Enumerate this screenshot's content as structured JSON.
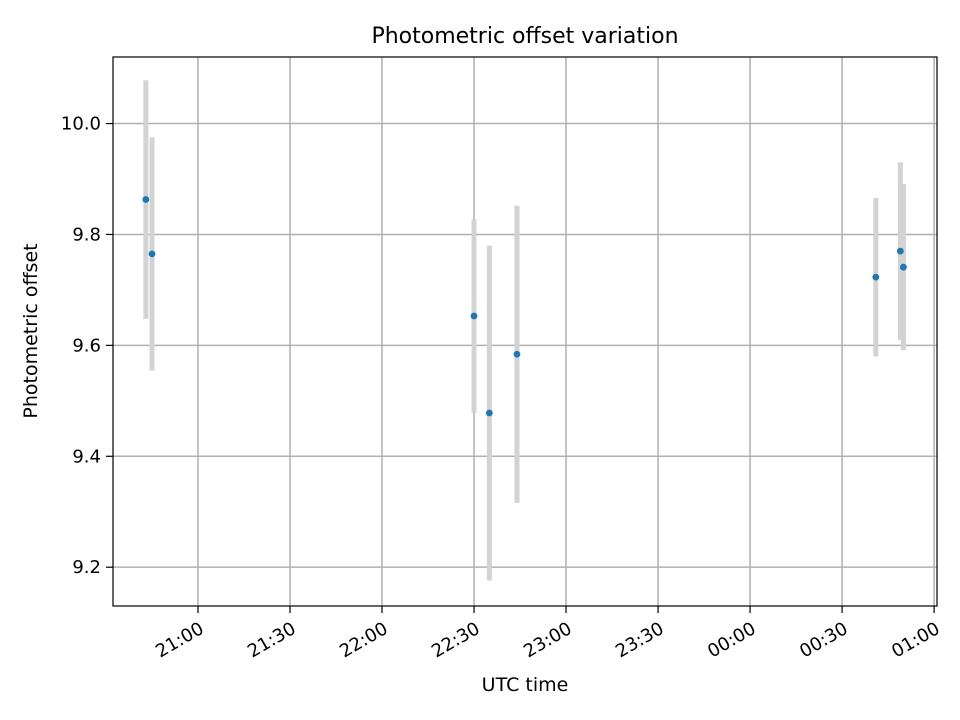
{
  "chart_data": {
    "type": "scatter",
    "title": "Photometric offset variation",
    "xlabel": "UTC time",
    "ylabel": "Photometric offset",
    "x_axis_type": "time",
    "x_ticks": [
      "21:00",
      "21:30",
      "22:00",
      "22:30",
      "23:00",
      "23:30",
      "00:00",
      "00:30",
      "01:00"
    ],
    "y_ticks": [
      "9.2",
      "9.4",
      "9.6",
      "9.8",
      "10.0"
    ],
    "ylim": [
      9.13,
      10.12
    ],
    "grid": true,
    "marker_color": "#1f77b4",
    "errorbar_color": "#d3d3d3",
    "points": [
      {
        "x": "20:43",
        "y": 9.863,
        "err": 0.215
      },
      {
        "x": "20:45",
        "y": 9.765,
        "err": 0.21
      },
      {
        "x": "22:30",
        "y": 9.653,
        "err": 0.175
      },
      {
        "x": "22:35",
        "y": 9.478,
        "err": 0.302
      },
      {
        "x": "22:44",
        "y": 9.584,
        "err": 0.268
      },
      {
        "x": "00:41",
        "y": 9.723,
        "err": 0.143
      },
      {
        "x": "00:49",
        "y": 9.77,
        "err": 0.16
      },
      {
        "x": "00:50",
        "y": 9.741,
        "err": 0.15
      }
    ]
  }
}
